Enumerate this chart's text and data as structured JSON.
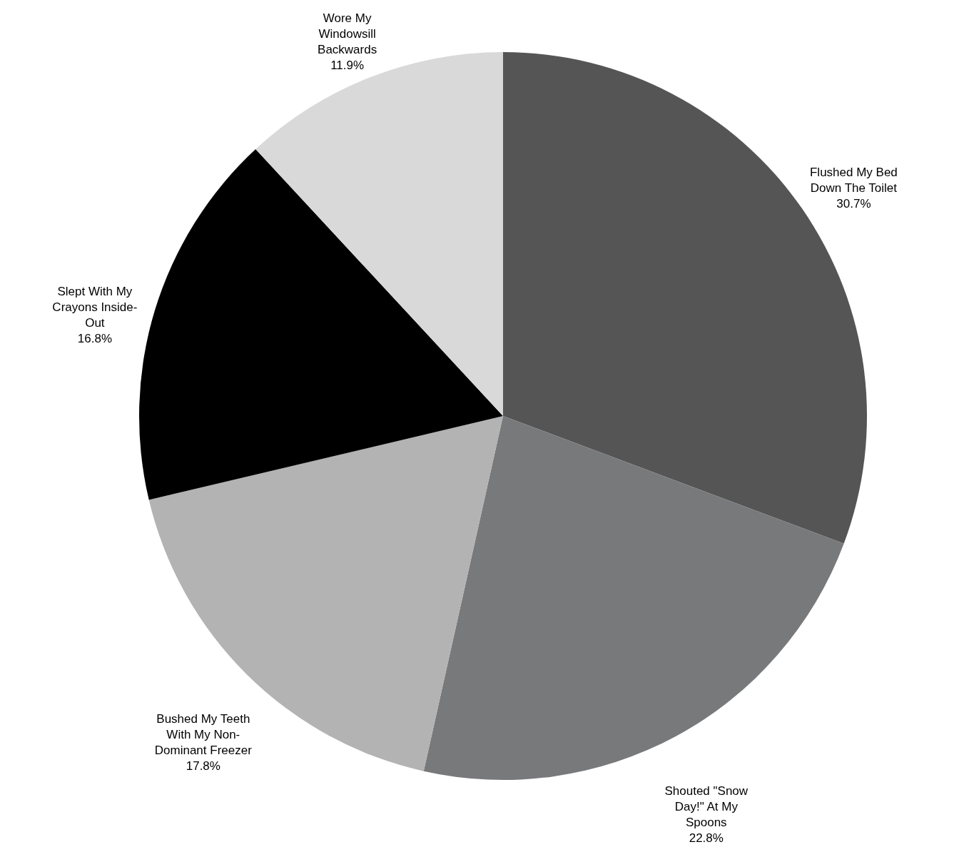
{
  "chart_data": {
    "type": "pie",
    "categories": [
      "Flushed My Bed Down The Toilet",
      "Shouted \"Snow Day!\" At My Spoons",
      "Bushed My Teeth With My Non-Dominant Freezer",
      "Slept With My Crayons Inside-Out",
      "Wore My Windowsill Backwards"
    ],
    "values": [
      30.7,
      22.8,
      17.8,
      16.8,
      11.9
    ],
    "value_labels": [
      "30.7%",
      "22.8%",
      "17.8%",
      "16.8%",
      "11.9%"
    ],
    "colors": [
      "#555555",
      "#78797b",
      "#b3b3b3",
      "#000000",
      "#d9d9d9"
    ],
    "legend": false
  }
}
